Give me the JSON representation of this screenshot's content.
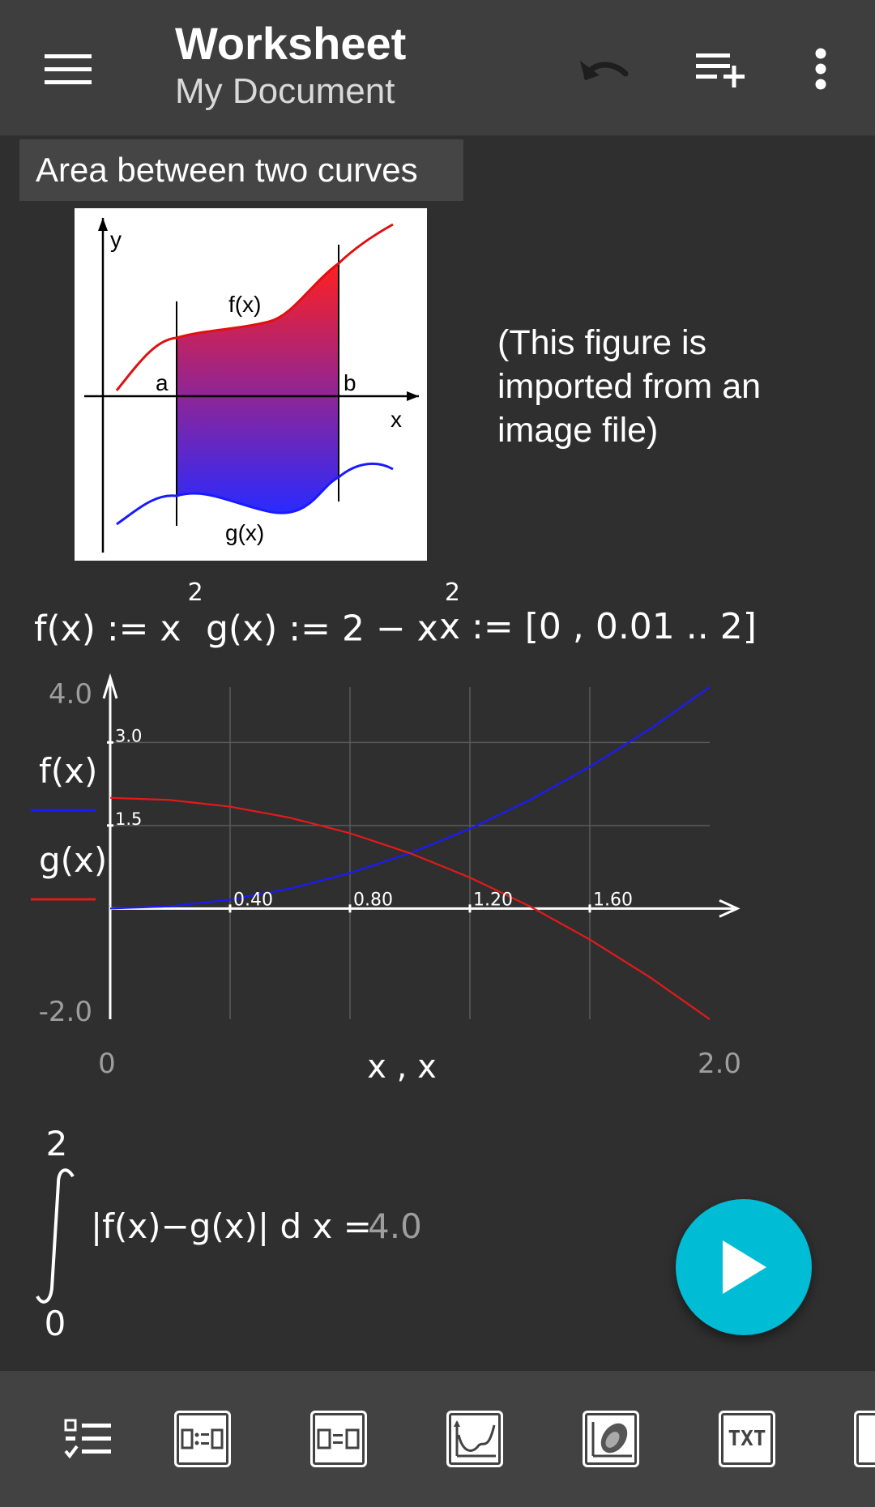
{
  "appbar": {
    "title": "Worksheet",
    "subtitle": "My Document",
    "icons": [
      "menu-icon",
      "undo-icon",
      "add-row-icon",
      "more-vert-icon"
    ]
  },
  "content": {
    "section_title": "Area between two curves",
    "figure": {
      "label_y": "y",
      "label_x": "x",
      "label_a": "a",
      "label_b": "b",
      "label_f": "f(x)",
      "label_g": "g(x)"
    },
    "figure_note": "(This figure is imported from an image file)",
    "definitions": {
      "f_def": "f(x) := x",
      "g_def": "g(x) := 2 − x",
      "power": "2",
      "x_def": "x := [0 , 0.01 .. 2]"
    },
    "integral": {
      "upper": "2",
      "lower": "0",
      "expression": "|f(x)−g(x)| d x =",
      "result": "4.0"
    }
  },
  "chart_data": {
    "type": "line",
    "x": [
      0,
      0.2,
      0.4,
      0.6,
      0.8,
      1.0,
      1.2,
      1.4,
      1.6,
      1.8,
      2.0
    ],
    "series": [
      {
        "name": "f(x)",
        "color": "#1a1aff",
        "values": [
          0,
          0.04,
          0.16,
          0.36,
          0.64,
          1.0,
          1.44,
          1.96,
          2.56,
          3.24,
          4.0
        ]
      },
      {
        "name": "g(x)",
        "color": "#e31a1a",
        "values": [
          2.0,
          1.96,
          1.84,
          1.64,
          1.36,
          1.0,
          0.56,
          0.04,
          -0.56,
          -1.24,
          -2.0
        ]
      }
    ],
    "xlim": [
      0,
      2.0
    ],
    "ylim": [
      -2.0,
      4.0
    ],
    "xlabel": "x , x",
    "x_tick_labels": [
      "0.40",
      "0.80",
      "1.20",
      "1.60"
    ],
    "y_tick_labels": [
      "1.5",
      "3.0"
    ],
    "x_range_labels": [
      "0",
      "2.0"
    ],
    "y_range_labels": [
      "4.0",
      "-2.0"
    ],
    "grid": true,
    "legend_position": "left"
  },
  "toolbar": {
    "items": [
      "checklist-icon",
      "assign-box-icon",
      "equals-box-icon",
      "plot-box-icon",
      "image-box-icon",
      "txt-box-icon",
      "more-box-icon"
    ],
    "txt_label": "TXT"
  },
  "fab": {
    "icon": "play-icon"
  }
}
